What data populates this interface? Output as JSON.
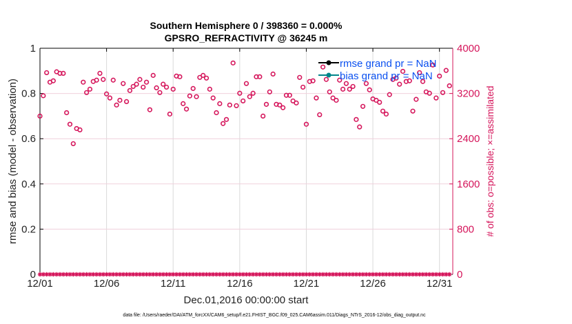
{
  "chart_data": {
    "type": "scatter",
    "title": [
      "Southern Hemisphere 0 / 398360 = 0.000%",
      "GPSRO_REFRACTIVITY @ 36245 m"
    ],
    "xlabel": "Dec.01,2016 00:00:00 start",
    "ylabel": "rmse and bias (model - observation)",
    "ylabel_right": "# of obs: o=possible; ×=assimilated",
    "xlim_days": [
      0,
      31
    ],
    "ylim": [
      0,
      1
    ],
    "ylim_right": [
      0,
      4000
    ],
    "x_ticks": [
      {
        "day": 0,
        "label": "12/01"
      },
      {
        "day": 5,
        "label": "12/06"
      },
      {
        "day": 10,
        "label": "12/11"
      },
      {
        "day": 15,
        "label": "12/16"
      },
      {
        "day": 20,
        "label": "12/21"
      },
      {
        "day": 25,
        "label": "12/26"
      },
      {
        "day": 30,
        "label": "12/31"
      }
    ],
    "y_ticks": [
      {
        "v": 0,
        "label": "0"
      },
      {
        "v": 0.2,
        "label": "0.2"
      },
      {
        "v": 0.4,
        "label": "0.4"
      },
      {
        "v": 0.6,
        "label": "0.6"
      },
      {
        "v": 0.8,
        "label": "0.8"
      },
      {
        "v": 1,
        "label": "1"
      }
    ],
    "y_ticks_right": [
      {
        "v": 0,
        "label": "0"
      },
      {
        "v": 800,
        "label": "800"
      },
      {
        "v": 1600,
        "label": "1600"
      },
      {
        "v": 2400,
        "label": "2400"
      },
      {
        "v": 3200,
        "label": "3200"
      },
      {
        "v": 4000,
        "label": "4000"
      }
    ],
    "grid": true,
    "legend": {
      "placement": "top-right",
      "entries": [
        {
          "label": "rmse grand pr = NaN",
          "color": "#000000"
        },
        {
          "label": "bias grand pr = NaN",
          "color": "#00858a"
        }
      ]
    },
    "x_start_day": 0,
    "x_step_days": 0.25,
    "series": [
      {
        "name": "possible",
        "marker": "o",
        "color": "#d5145a",
        "values": [
          2800,
          3160,
          3568,
          3400,
          3424,
          3584,
          3556,
          3556,
          2860,
          2656,
          2312,
          2580,
          2556,
          3400,
          3216,
          3276,
          3412,
          3436,
          3556,
          3448,
          3192,
          3120,
          3436,
          2996,
          3080,
          3376,
          3056,
          3252,
          3324,
          3364,
          3448,
          3312,
          3400,
          2912,
          3520,
          3300,
          3216,
          3364,
          3312,
          2836,
          3276,
          3508,
          3496,
          3020,
          2924,
          3156,
          3288,
          3144,
          3484,
          3520,
          3472,
          3276,
          3120,
          2860,
          3020,
          2668,
          2740,
          2996,
          3740,
          2984,
          3204,
          3068,
          3376,
          3144,
          3204,
          3496,
          3496,
          2800,
          3008,
          3228,
          3544,
          3008,
          2996,
          2948,
          3168,
          3168,
          3068,
          3032,
          3484,
          3312,
          2656,
          3412,
          3424,
          3120,
          2824,
          3668,
          3448,
          3228,
          3120,
          3080,
          3436,
          3276,
          3376,
          3276,
          3324,
          2740,
          2608,
          2972,
          3376,
          3264,
          3104,
          3080,
          3044,
          2888,
          2836,
          3180,
          3448,
          3472,
          3364,
          3592,
          3412,
          3424,
          2888,
          3096,
          3568,
          3412,
          3228,
          3204,
          3704,
          3120,
          3508,
          3216,
          3608,
          3336
        ]
      },
      {
        "name": "assimilated",
        "marker": "*",
        "color": "#d5145a",
        "values": [
          0,
          0,
          0,
          0,
          0,
          0,
          0,
          0,
          0,
          0,
          0,
          0,
          0,
          0,
          0,
          0,
          0,
          0,
          0,
          0,
          0,
          0,
          0,
          0,
          0,
          0,
          0,
          0,
          0,
          0,
          0,
          0,
          0,
          0,
          0,
          0,
          0,
          0,
          0,
          0,
          0,
          0,
          0,
          0,
          0,
          0,
          0,
          0,
          0,
          0,
          0,
          0,
          0,
          0,
          0,
          0,
          0,
          0,
          0,
          0,
          0,
          0,
          0,
          0,
          0,
          0,
          0,
          0,
          0,
          0,
          0,
          0,
          0,
          0,
          0,
          0,
          0,
          0,
          0,
          0,
          0,
          0,
          0,
          0,
          0,
          0,
          0,
          0,
          0,
          0,
          0,
          0,
          0,
          0,
          0,
          0,
          0,
          0,
          0,
          0,
          0,
          0,
          0,
          0,
          0,
          0,
          0,
          0,
          0,
          0,
          0,
          0,
          0,
          0,
          0,
          0,
          0,
          0,
          0,
          0,
          0,
          0,
          0,
          0
        ]
      }
    ],
    "footer": "data file: /Users/raeder/DAI/ATM_forcXX/CAM6_setup/f.e21.FHIST_BGC.f09_025.CAM6assim.011/Diags_NTrS_2016-12/obs_diag_output.nc"
  },
  "colors": {
    "obs": "#d5145a",
    "legend_text": "#0a50f0",
    "grid_v": "#d9d9d9",
    "grid_h": "#f0d0dc"
  }
}
